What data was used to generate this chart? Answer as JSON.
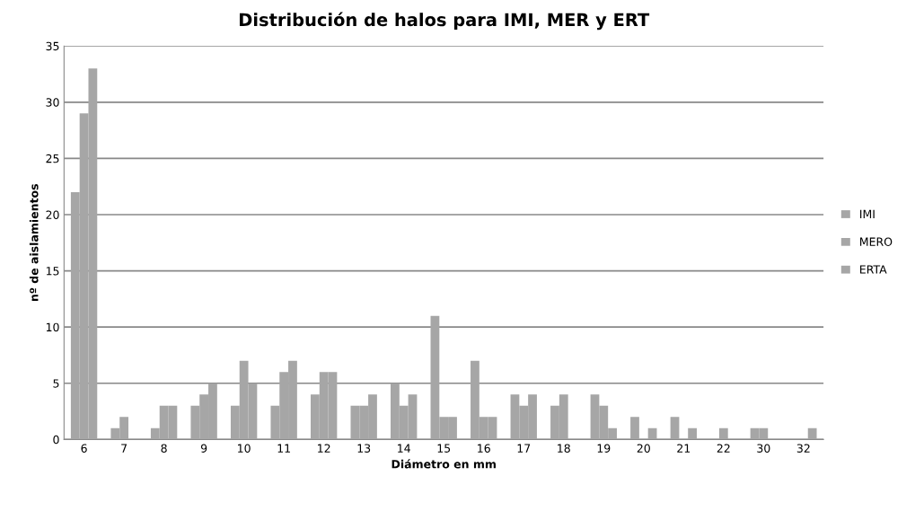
{
  "chart_data": {
    "type": "bar",
    "title": "Distribución de halos para IMI, MER y ERT",
    "xlabel": "Diámetro en mm",
    "ylabel": "nº de aislamientos",
    "categories": [
      "6",
      "7",
      "8",
      "9",
      "10",
      "11",
      "12",
      "13",
      "14",
      "15",
      "16",
      "17",
      "18",
      "19",
      "20",
      "21",
      "22",
      "30",
      "32"
    ],
    "series": [
      {
        "name": "IMI",
        "color": "#a6a6a6",
        "values": [
          22,
          1,
          1,
          3,
          3,
          3,
          4,
          3,
          5,
          11,
          7,
          4,
          3,
          4,
          2,
          2,
          0,
          1,
          0
        ]
      },
      {
        "name": "MERO",
        "color": "#a6a6a6",
        "values": [
          29,
          2,
          3,
          4,
          7,
          6,
          6,
          3,
          3,
          2,
          2,
          3,
          4,
          3,
          0,
          0,
          1,
          1,
          0
        ]
      },
      {
        "name": "ERTA",
        "color": "#a6a6a6",
        "values": [
          33,
          0,
          3,
          5,
          5,
          7,
          6,
          4,
          4,
          2,
          2,
          4,
          0,
          1,
          1,
          1,
          0,
          0,
          1
        ]
      }
    ],
    "ylim": [
      0,
      35
    ],
    "yticks": [
      0,
      5,
      10,
      15,
      20,
      25,
      30,
      35
    ],
    "grid": "y",
    "legend": "right"
  }
}
